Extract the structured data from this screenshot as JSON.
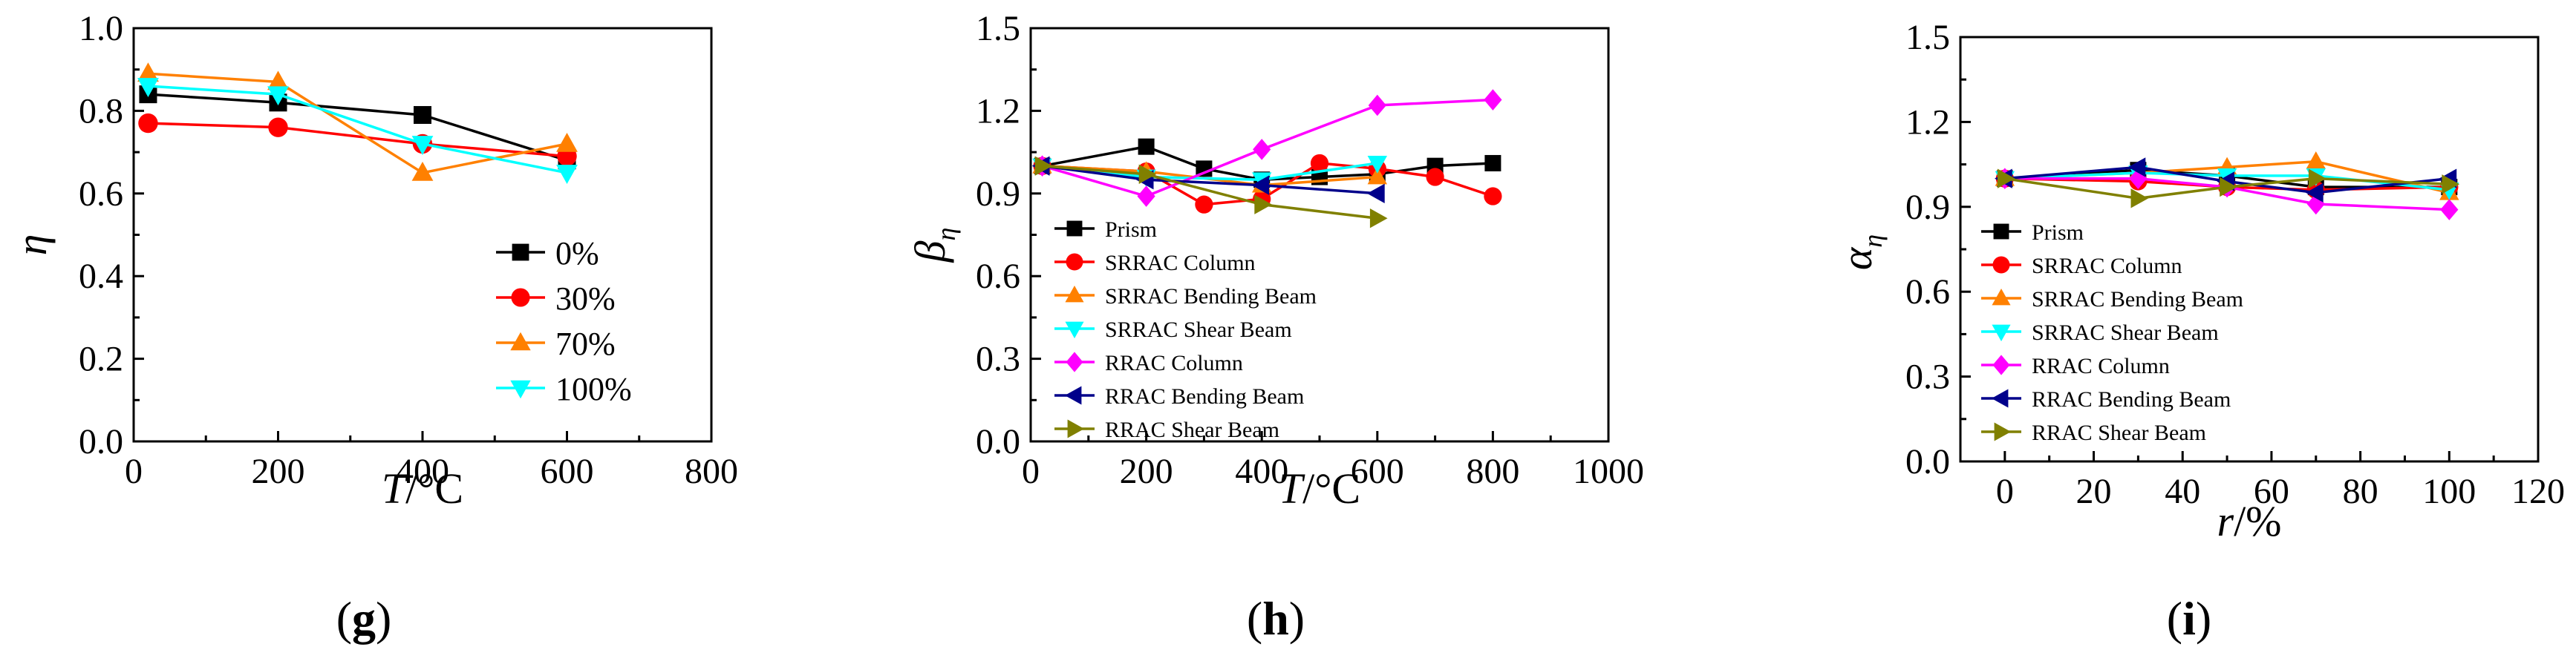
{
  "chart_data": [
    {
      "type": "line",
      "panel_label": "(g)",
      "ylabel": "η",
      "xlabel": "T/°C",
      "xlim": [
        0,
        800
      ],
      "ylim": [
        0.0,
        1.0
      ],
      "xticks": [
        "0",
        "200",
        "400",
        "600",
        "800"
      ],
      "yticks": [
        "0.0",
        "0.2",
        "0.4",
        "0.6",
        "0.8",
        "1.0"
      ],
      "legend_position": "lower-right",
      "series": [
        {
          "name": "0%",
          "color": "#000000",
          "marker": "square",
          "x": [
            20,
            200,
            400,
            600
          ],
          "y": [
            0.84,
            0.82,
            0.79,
            0.68
          ]
        },
        {
          "name": "30%",
          "color": "#ff0000",
          "marker": "circle",
          "x": [
            20,
            200,
            400,
            600
          ],
          "y": [
            0.77,
            0.76,
            0.72,
            0.69
          ]
        },
        {
          "name": "70%",
          "color": "#ff8000",
          "marker": "triangle-up",
          "x": [
            20,
            200,
            400,
            600
          ],
          "y": [
            0.89,
            0.87,
            0.65,
            0.72
          ]
        },
        {
          "name": "100%",
          "color": "#00ffff",
          "marker": "triangle-down",
          "x": [
            20,
            200,
            400,
            600
          ],
          "y": [
            0.86,
            0.84,
            0.72,
            0.65
          ]
        }
      ]
    },
    {
      "type": "line",
      "panel_label": "(h)",
      "ylabel": "β",
      "ylabel_sub": "η",
      "xlabel": "T/°C",
      "xlim": [
        0,
        1000
      ],
      "ylim": [
        0.0,
        1.5
      ],
      "xticks": [
        "0",
        "200",
        "400",
        "600",
        "800",
        "1000"
      ],
      "yticks": [
        "0.0",
        "0.3",
        "0.6",
        "0.9",
        "1.2",
        "1.5"
      ],
      "legend_position": "lower-left",
      "series": [
        {
          "name": "Prism",
          "color": "#000000",
          "marker": "square",
          "x": [
            20,
            200,
            300,
            400,
            500,
            600,
            700,
            800
          ],
          "y": [
            1.0,
            1.07,
            0.99,
            0.95,
            0.96,
            0.97,
            1.0,
            1.01
          ]
        },
        {
          "name": "SRRAC Column",
          "color": "#ff0000",
          "marker": "circle",
          "x": [
            20,
            200,
            300,
            400,
            500,
            600,
            700,
            800
          ],
          "y": [
            1.0,
            0.98,
            0.86,
            0.88,
            1.01,
            0.99,
            0.96,
            0.89
          ]
        },
        {
          "name": "SRRAC Bending Beam",
          "color": "#ff8000",
          "marker": "triangle-up",
          "x": [
            20,
            200,
            400,
            600
          ],
          "y": [
            1.0,
            0.98,
            0.93,
            0.96
          ]
        },
        {
          "name": "SRRAC Shear Beam",
          "color": "#00ffff",
          "marker": "triangle-down",
          "x": [
            20,
            200,
            400,
            600
          ],
          "y": [
            1.0,
            0.96,
            0.95,
            1.01
          ]
        },
        {
          "name": "RRAC Column",
          "color": "#ff00ff",
          "marker": "diamond",
          "x": [
            20,
            200,
            400,
            600,
            800
          ],
          "y": [
            1.0,
            0.89,
            1.06,
            1.22,
            1.24
          ]
        },
        {
          "name": "RRAC Bending Beam",
          "color": "#00008b",
          "marker": "triangle-left",
          "x": [
            20,
            200,
            400,
            600
          ],
          "y": [
            1.0,
            0.95,
            0.93,
            0.9
          ]
        },
        {
          "name": "RRAC Shear Beam",
          "color": "#808000",
          "marker": "triangle-right",
          "x": [
            20,
            200,
            400,
            600
          ],
          "y": [
            1.0,
            0.97,
            0.86,
            0.81
          ]
        }
      ]
    },
    {
      "type": "line",
      "panel_label": "(i)",
      "ylabel": "α",
      "ylabel_sub": "η",
      "xlabel": "r/%",
      "xlim": [
        -10,
        120
      ],
      "ylim": [
        0.0,
        1.5
      ],
      "xticks": [
        "0",
        "20",
        "40",
        "60",
        "80",
        "100",
        "120"
      ],
      "yticks": [
        "0.0",
        "0.3",
        "0.6",
        "0.9",
        "1.2",
        "1.5"
      ],
      "legend_position": "lower-left",
      "series": [
        {
          "name": "Prism",
          "color": "#000000",
          "marker": "square",
          "x": [
            0,
            30,
            50,
            70,
            100
          ],
          "y": [
            1.0,
            1.03,
            1.01,
            0.97,
            0.97
          ]
        },
        {
          "name": "SRRAC Column",
          "color": "#ff0000",
          "marker": "circle",
          "x": [
            0,
            30,
            50,
            70,
            100
          ],
          "y": [
            1.0,
            0.99,
            0.97,
            0.96,
            0.97
          ]
        },
        {
          "name": "SRRAC Bending Beam",
          "color": "#ff8000",
          "marker": "triangle-up",
          "x": [
            0,
            30,
            50,
            70,
            100
          ],
          "y": [
            1.0,
            1.02,
            1.04,
            1.06,
            0.95
          ]
        },
        {
          "name": "SRRAC Shear Beam",
          "color": "#00ffff",
          "marker": "triangle-down",
          "x": [
            0,
            30,
            50,
            70,
            100
          ],
          "y": [
            1.0,
            1.02,
            1.01,
            1.01,
            0.96
          ]
        },
        {
          "name": "RRAC Column",
          "color": "#ff00ff",
          "marker": "diamond",
          "x": [
            0,
            30,
            50,
            70,
            100
          ],
          "y": [
            1.0,
            1.0,
            0.97,
            0.91,
            0.89
          ]
        },
        {
          "name": "RRAC Bending Beam",
          "color": "#00008b",
          "marker": "triangle-left",
          "x": [
            0,
            30,
            50,
            70,
            100
          ],
          "y": [
            1.0,
            1.04,
            0.99,
            0.95,
            1.0
          ]
        },
        {
          "name": "RRAC Shear Beam",
          "color": "#808000",
          "marker": "triangle-right",
          "x": [
            0,
            30,
            50,
            70,
            100
          ],
          "y": [
            1.0,
            0.93,
            0.97,
            1.0,
            0.98
          ]
        }
      ]
    }
  ]
}
